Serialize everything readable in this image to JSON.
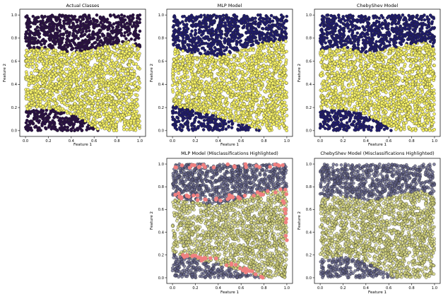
{
  "figure": {
    "background": "#ffffff"
  },
  "colors": {
    "class0": "#2a0f45",
    "class1": "#f5f065",
    "mlp_class0": "#1f1b6e",
    "point_edge": "#222222",
    "misclassified": "#f08080",
    "ghost0": "#5d5d86",
    "ghost1": "#d5d67a"
  },
  "chart_data": [
    {
      "id": "actual",
      "type": "scatter",
      "title": "Actual Classes",
      "xlabel": "Feature 1",
      "ylabel": "Feature 2",
      "xlim": [
        -0.05,
        1.05
      ],
      "ylim": [
        -0.05,
        1.05
      ],
      "xticks": [
        "0.0",
        "0.2",
        "0.4",
        "0.6",
        "0.8",
        "1.0"
      ],
      "yticks": [
        "0.0",
        "0.2",
        "0.4",
        "0.6",
        "0.8",
        "1.0"
      ],
      "region_boundaries": {
        "upper_x": [
          0.0,
          0.2,
          0.4,
          0.6,
          0.8,
          0.9,
          1.0
        ],
        "upper_y": [
          0.7,
          0.72,
          0.67,
          0.71,
          0.75,
          0.77,
          0.71
        ],
        "lower_x": [
          0.0,
          0.2,
          0.4,
          0.5,
          0.6,
          0.65
        ],
        "lower_y": [
          0.17,
          0.19,
          0.14,
          0.09,
          0.03,
          0.0
        ]
      },
      "classes": [
        "0",
        "1"
      ]
    },
    {
      "id": "mlp",
      "type": "scatter",
      "title": "MLP Model",
      "xlabel": "Feature 1",
      "ylabel": "Feature 2",
      "xlim": [
        -0.05,
        1.05
      ],
      "ylim": [
        -0.05,
        1.05
      ],
      "xticks": [
        "0.0",
        "0.2",
        "0.4",
        "0.6",
        "0.8",
        "1.0"
      ],
      "yticks": [
        "0.0",
        "0.2",
        "0.4",
        "0.6",
        "0.8",
        "1.0"
      ],
      "region_boundaries": {
        "upper_x": [
          0.0,
          0.2,
          0.4,
          0.6,
          0.8,
          1.0
        ],
        "upper_y": [
          0.72,
          0.66,
          0.64,
          0.7,
          0.76,
          0.78
        ],
        "lower_x": [
          0.0,
          0.2,
          0.4,
          0.6,
          0.77
        ],
        "lower_y": [
          0.22,
          0.17,
          0.12,
          0.06,
          0.0
        ]
      },
      "classes": [
        "0",
        "1"
      ]
    },
    {
      "id": "cheby",
      "type": "scatter",
      "title": "ChebyShev Model",
      "xlabel": "Feature 1",
      "ylabel": "Feature 2",
      "xlim": [
        -0.05,
        1.05
      ],
      "ylim": [
        -0.05,
        1.05
      ],
      "xticks": [
        "0.0",
        "0.2",
        "0.4",
        "0.6",
        "0.8",
        "1.0"
      ],
      "yticks": [
        "0.0",
        "0.2",
        "0.4",
        "0.6",
        "0.8",
        "1.0"
      ],
      "region_boundaries": {
        "upper_x": [
          0.0,
          0.2,
          0.4,
          0.6,
          0.8,
          0.9,
          1.0
        ],
        "upper_y": [
          0.7,
          0.72,
          0.67,
          0.71,
          0.75,
          0.77,
          0.71
        ],
        "lower_x": [
          0.0,
          0.2,
          0.4,
          0.5,
          0.6,
          0.65
        ],
        "lower_y": [
          0.17,
          0.19,
          0.14,
          0.09,
          0.03,
          0.0
        ]
      },
      "classes": [
        "0",
        "1"
      ]
    },
    {
      "id": "mlp_mis",
      "type": "scatter",
      "title": "MLP Model (Misclassifications Highlighted)",
      "xlabel": "Feature 1",
      "ylabel": "Feature 2",
      "xlim": [
        -0.05,
        1.05
      ],
      "ylim": [
        -0.05,
        1.05
      ],
      "xticks": [
        "0.0",
        "0.2",
        "0.4",
        "0.6",
        "0.8",
        "1.0"
      ],
      "yticks": [
        "0.0",
        "0.2",
        "0.4",
        "0.6",
        "0.8",
        "1.0"
      ],
      "misclassified_bands": [
        {
          "x": [
            0.0,
            0.25,
            0.5,
            0.75,
            0.97
          ],
          "y": [
            0.99,
            0.99,
            0.99,
            0.99,
            0.99
          ]
        },
        {
          "x": [
            0.0,
            0.15,
            0.35,
            0.55,
            0.75,
            0.98
          ],
          "y": [
            0.73,
            0.71,
            0.69,
            0.71,
            0.74,
            0.77
          ]
        },
        {
          "x": [
            0.98,
            0.99,
            1.0,
            1.0
          ],
          "y": [
            0.75,
            0.6,
            0.45,
            0.3
          ]
        },
        {
          "x": [
            0.0,
            0.1,
            0.3,
            0.5,
            0.6,
            0.77
          ],
          "y": [
            0.21,
            0.18,
            0.17,
            0.12,
            0.08,
            0.0
          ]
        }
      ],
      "classes": [
        "0",
        "1",
        "misclassified"
      ]
    },
    {
      "id": "cheby_mis",
      "type": "scatter",
      "title": "ChebyShev Model (Misclassifications Highlighted)",
      "xlabel": "Feature 1",
      "ylabel": "Feature 2",
      "xlim": [
        -0.05,
        1.05
      ],
      "ylim": [
        -0.05,
        1.05
      ],
      "xticks": [
        "0.0",
        "0.2",
        "0.4",
        "0.6",
        "0.8",
        "1.0"
      ],
      "yticks": [
        "0.0",
        "0.2",
        "0.4",
        "0.6",
        "0.8",
        "1.0"
      ],
      "region_boundaries": {
        "upper_x": [
          0.0,
          0.2,
          0.4,
          0.6,
          0.8,
          0.9,
          1.0
        ],
        "upper_y": [
          0.7,
          0.72,
          0.67,
          0.71,
          0.75,
          0.77,
          0.71
        ],
        "lower_x": [
          0.0,
          0.2,
          0.4,
          0.5,
          0.6,
          0.65
        ],
        "lower_y": [
          0.17,
          0.19,
          0.14,
          0.09,
          0.03,
          0.0
        ]
      },
      "classes": [
        "0",
        "1"
      ]
    }
  ]
}
